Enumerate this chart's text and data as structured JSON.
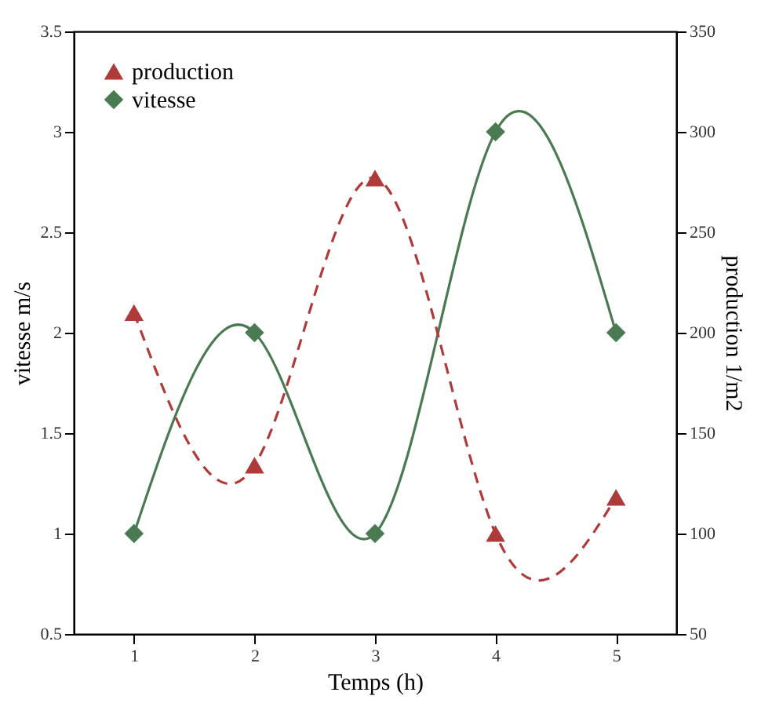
{
  "chart_data": {
    "type": "line",
    "xlabel": "Temps (h)",
    "ylabel": "vitesse m/s",
    "y2label": "production 1/m2",
    "x": [
      1,
      2,
      3,
      4,
      5
    ],
    "series": [
      {
        "name": "production",
        "color": "#b03a3a",
        "values": [
          210,
          134,
          277,
          100,
          118
        ],
        "axis": "y2",
        "marker": "triangle",
        "line_style": "dashed"
      },
      {
        "name": "vitesse",
        "color": "#4a7a52",
        "values": [
          1,
          2,
          1,
          3,
          2
        ],
        "marker": "diamond",
        "line_style": "solid"
      }
    ],
    "xlim": [
      0.5,
      5.5
    ],
    "xticks": [
      1,
      2,
      3,
      4,
      5
    ],
    "ylim": [
      0.5,
      3.5
    ],
    "yticks": [
      0.5,
      1,
      1.5,
      2,
      2.5,
      3,
      3.5
    ],
    "y2lim": [
      50,
      350
    ],
    "y2ticks": [
      50,
      100,
      150,
      200,
      250,
      300,
      350
    ],
    "grid": false,
    "legend": "top left"
  }
}
